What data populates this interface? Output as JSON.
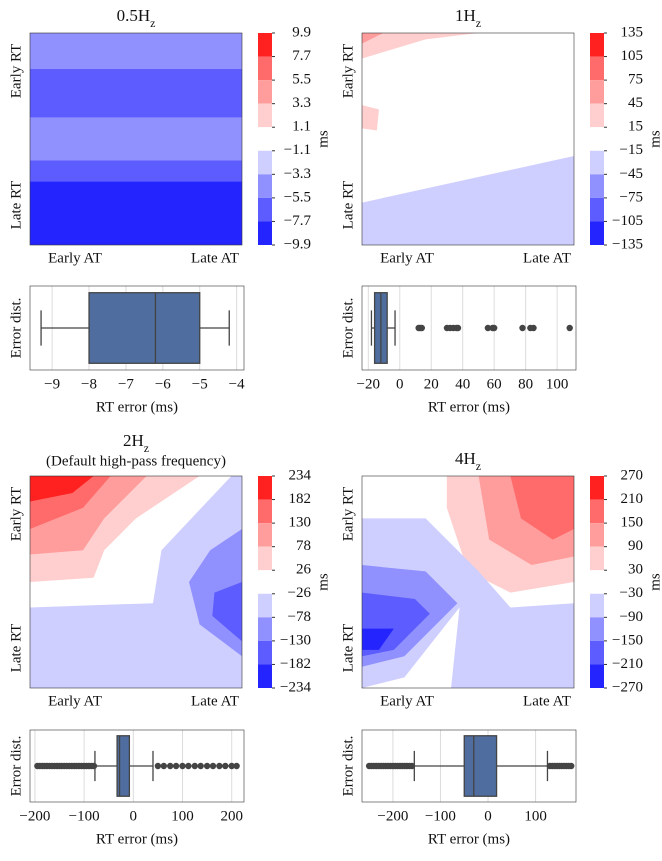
{
  "chart_data": [
    {
      "type": "contour",
      "title": "0.5H",
      "title_sub": "z",
      "xlabels": [
        "Early AT",
        "Late AT"
      ],
      "ylabels": [
        "Early RT",
        "Late RT"
      ],
      "colorbar": {
        "label": "ms",
        "ylim": [
          -9.9,
          9.9
        ],
        "colors": [
          "#ff2020",
          "#ff6a6a",
          "#ff9c9c",
          "#ffcfcf",
          "#ffffff",
          "#cfcfff",
          "#9090ff",
          "#5c5cff",
          "#2424ff"
        ],
        "yticks": [
          9.9,
          7.7,
          5.5,
          3.3,
          1.1,
          {
            "value": -1.1,
            "label": "−1.1"
          },
          {
            "value": -3.3,
            "label": "−3.3"
          },
          {
            "value": -5.5,
            "label": "−5.5"
          },
          {
            "value": -7.7,
            "label": "−7.7"
          },
          {
            "value": -9.9,
            "label": "−9.9"
          }
        ]
      }
    },
    {
      "type": "box",
      "xlabel": "RT error (ms)",
      "ylabel": "Error dist.",
      "color": "#4f6d9f",
      "grid": true,
      "xlim": [
        -9.6,
        -3.8
      ],
      "xticks": [
        {
          "value": -9,
          "label": "−9"
        },
        {
          "value": -8,
          "label": "−8"
        },
        {
          "value": -7,
          "label": "−7"
        },
        {
          "value": -6,
          "label": "−6"
        },
        {
          "value": -5,
          "label": "−5"
        },
        {
          "value": -4,
          "label": "−4"
        }
      ],
      "whislo": -9.3,
      "q1": -8,
      "med": -6.2,
      "q3": -5,
      "whishi": -4.2,
      "fliers": []
    },
    {
      "type": "contour",
      "title": "1H",
      "title_sub": "z",
      "xlabels": [
        "Early AT",
        "Late AT"
      ],
      "ylabels": [
        "Early RT",
        "Late RT"
      ],
      "colorbar": {
        "label": "ms",
        "ylim": [
          -135,
          135
        ],
        "colors": [
          "#ff2020",
          "#ff6a6a",
          "#ff9c9c",
          "#ffcfcf",
          "#ffffff",
          "#cfcfff",
          "#9090ff",
          "#5c5cff",
          "#2424ff"
        ],
        "yticks": [
          135,
          105,
          75,
          45,
          15,
          {
            "value": -15,
            "label": "−15"
          },
          {
            "value": -45,
            "label": "−45"
          },
          {
            "value": -75,
            "label": "−75"
          },
          {
            "value": -105,
            "label": "−105"
          },
          {
            "value": -135,
            "label": "−135"
          }
        ]
      }
    },
    {
      "type": "box",
      "xlabel": "RT error (ms)",
      "ylabel": "Error dist.",
      "color": "#4f6d9f",
      "grid": true,
      "xlim": [
        -24,
        112
      ],
      "xticks": [
        {
          "value": -20,
          "label": "−20"
        },
        0,
        20,
        40,
        60,
        80,
        100
      ],
      "whislo": -18,
      "q1": -16,
      "med": -12,
      "q3": -8,
      "whishi": -3,
      "fliers": [
        12,
        13,
        14,
        30,
        32,
        34,
        36,
        37,
        56,
        59,
        60,
        78,
        83,
        85,
        108
      ]
    },
    {
      "type": "contour",
      "title": "2H",
      "title_sub": "z",
      "subtitle": "(Default high-pass frequency)",
      "xlabels": [
        "Early AT",
        "Late AT"
      ],
      "ylabels": [
        "Early RT",
        "Late RT"
      ],
      "colorbar": {
        "label": "ms",
        "ylim": [
          -234,
          234
        ],
        "colors": [
          "#ff2020",
          "#ff6a6a",
          "#ff9c9c",
          "#ffcfcf",
          "#ffffff",
          "#cfcfff",
          "#9090ff",
          "#5c5cff",
          "#2424ff"
        ],
        "yticks": [
          234,
          182,
          130,
          78,
          26,
          {
            "value": -26,
            "label": "−26"
          },
          {
            "value": -78,
            "label": "−78"
          },
          {
            "value": -130,
            "label": "−130"
          },
          {
            "value": -182,
            "label": "−182"
          },
          {
            "value": -234,
            "label": "−234"
          }
        ]
      }
    },
    {
      "type": "box",
      "xlabel": "RT error (ms)",
      "ylabel": "Error dist.",
      "color": "#4f6d9f",
      "grid": true,
      "xlim": [
        -210,
        225
      ],
      "xticks": [
        {
          "value": -200,
          "label": "−200"
        },
        {
          "value": -100,
          "label": "−100"
        },
        0,
        100,
        200
      ],
      "whislo": -78,
      "q1": -33,
      "med": -28,
      "q3": -8,
      "whishi": 40,
      "fliers": [
        -195,
        -190,
        -185,
        -180,
        -175,
        -170,
        -165,
        -160,
        -155,
        -150,
        -145,
        -140,
        -135,
        -130,
        -125,
        -120,
        -115,
        -110,
        -105,
        -100,
        -95,
        -90,
        -85,
        -80,
        50,
        62,
        75,
        87,
        100,
        112,
        125,
        137,
        150,
        162,
        175,
        187,
        200,
        210
      ]
    },
    {
      "type": "contour",
      "title": "4H",
      "title_sub": "z",
      "xlabels": [
        "Early AT",
        "Late AT"
      ],
      "ylabels": [
        "Early RT",
        "Late RT"
      ],
      "colorbar": {
        "label": "ms",
        "ylim": [
          -270,
          270
        ],
        "colors": [
          "#ff2020",
          "#ff6a6a",
          "#ff9c9c",
          "#ffcfcf",
          "#ffffff",
          "#cfcfff",
          "#9090ff",
          "#5c5cff",
          "#2424ff"
        ],
        "yticks": [
          270,
          210,
          150,
          90,
          30,
          {
            "value": -30,
            "label": "−30"
          },
          {
            "value": -90,
            "label": "−90"
          },
          {
            "value": -150,
            "label": "−150"
          },
          {
            "value": -210,
            "label": "−210"
          },
          {
            "value": -270,
            "label": "−270"
          }
        ]
      }
    },
    {
      "type": "box",
      "xlabel": "RT error (ms)",
      "ylabel": "Error dist.",
      "color": "#4f6d9f",
      "grid": true,
      "xlim": [
        -265,
        185
      ],
      "xticks": [
        {
          "value": -200,
          "label": "−200"
        },
        {
          "value": -100,
          "label": "−100"
        },
        0,
        100
      ],
      "whislo": -155,
      "q1": -50,
      "med": -30,
      "q3": 18,
      "whishi": 125,
      "fliers": [
        -250,
        -245,
        -240,
        -235,
        -230,
        -225,
        -220,
        -215,
        -210,
        -205,
        -200,
        -195,
        -190,
        -185,
        -180,
        -175,
        -170,
        -165,
        -160,
        130,
        135,
        140,
        145,
        150,
        155,
        160,
        165,
        170,
        175
      ]
    }
  ]
}
